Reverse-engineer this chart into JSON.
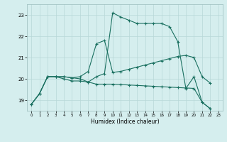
{
  "xlabel": "Humidex (Indice chaleur)",
  "background_color": "#d5eeee",
  "line_color": "#1a7060",
  "grid_color": "#b8d8d8",
  "xlim": [
    -0.5,
    23.5
  ],
  "ylim": [
    18.5,
    23.5
  ],
  "yticks": [
    19,
    20,
    21,
    22,
    23
  ],
  "xticks": [
    0,
    1,
    2,
    3,
    4,
    5,
    6,
    7,
    8,
    9,
    10,
    11,
    12,
    13,
    14,
    15,
    16,
    17,
    18,
    19,
    20,
    21,
    22,
    23
  ],
  "x_values": [
    0,
    1,
    2,
    3,
    4,
    5,
    6,
    7,
    8,
    9,
    10,
    11,
    12,
    13,
    14,
    15,
    16,
    17,
    18,
    19,
    20,
    21,
    22
  ],
  "series": [
    [
      18.8,
      19.3,
      20.1,
      20.1,
      20.0,
      19.9,
      19.9,
      19.85,
      20.1,
      20.25,
      23.1,
      22.9,
      22.75,
      22.6,
      22.6,
      22.6,
      22.6,
      22.45,
      21.75,
      19.55,
      20.1,
      18.9,
      18.6
    ],
    [
      18.8,
      19.3,
      20.1,
      20.1,
      20.1,
      20.05,
      20.1,
      20.35,
      21.65,
      21.8,
      20.3,
      20.35,
      20.45,
      20.55,
      20.65,
      20.75,
      20.85,
      20.95,
      21.05,
      21.1,
      21.0,
      20.1,
      19.8
    ],
    [
      18.8,
      19.3,
      20.1,
      20.1,
      20.1,
      20.05,
      20.0,
      19.85,
      19.75,
      19.75,
      19.75,
      19.73,
      19.71,
      19.69,
      19.67,
      19.65,
      19.63,
      19.61,
      19.59,
      19.57,
      19.55,
      18.9,
      18.6
    ]
  ]
}
